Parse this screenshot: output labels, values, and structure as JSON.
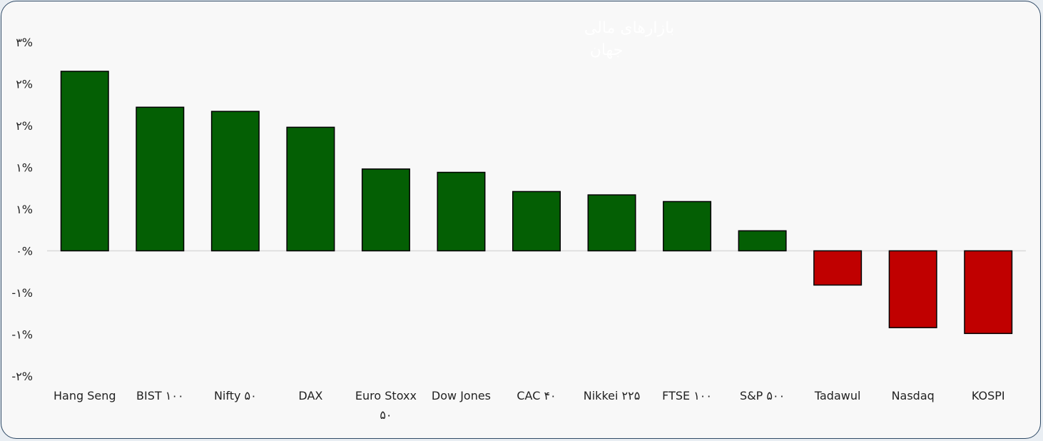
{
  "chart_data": {
    "type": "bar",
    "title_lines": [
      "بازارهای مالی",
      "جهان"
    ],
    "xlabel": "",
    "ylabel": "",
    "categories": [
      "Hang Seng",
      "BIST ۱۰۰",
      "Nifty ۵۰",
      "DAX",
      "Euro Stoxx ۵۰",
      "Dow Jones",
      "CAC ۴۰",
      "Nikkei ۲۲۵",
      "FTSE ۱۰۰",
      "S&P ۵۰۰",
      "Tadawul",
      "Nasdaq",
      "KOSPI"
    ],
    "category_lines": [
      [
        "Hang Seng"
      ],
      [
        "BIST ۱۰۰"
      ],
      [
        "Nifty ۵۰"
      ],
      [
        "DAX"
      ],
      [
        "Euro Stoxx",
        "۵۰"
      ],
      [
        "Dow Jones"
      ],
      [
        "CAC ۴۰"
      ],
      [
        "Nikkei ۲۲۵"
      ],
      [
        "FTSE ۱۰۰"
      ],
      [
        "S&P ۵۰۰"
      ],
      [
        "Tadawul"
      ],
      [
        "Nasdaq"
      ],
      [
        "KOSPI"
      ]
    ],
    "values": [
      2.15,
      1.72,
      1.67,
      1.48,
      0.98,
      0.94,
      0.71,
      0.67,
      0.59,
      0.24,
      -0.41,
      -0.92,
      -0.99
    ],
    "ylim": [
      -1.5,
      2.5
    ],
    "yticks": [
      2.5,
      2.0,
      1.5,
      1.0,
      0.5,
      0.0,
      -0.5,
      -1.0,
      -1.5
    ],
    "ytick_labels": [
      "۳%",
      "۲%",
      "۲%",
      "۱%",
      "۱%",
      "۰%",
      "-۱%",
      "-۱%",
      "-۲%"
    ],
    "colors": {
      "positive": "#045f04",
      "negative": "#c00000",
      "outline": "#000000",
      "zero_line": "#d9d9d9"
    },
    "grid": false,
    "legend": "none"
  }
}
